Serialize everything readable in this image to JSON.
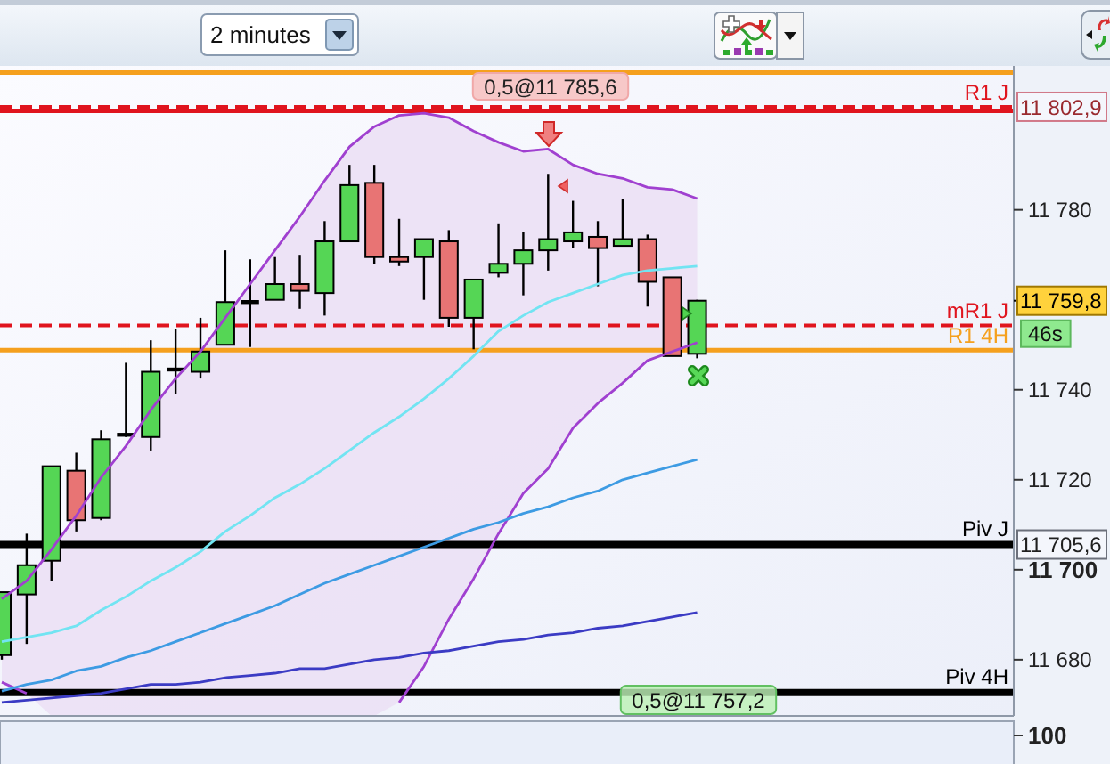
{
  "chart_data": [
    {
      "type": "candlestick",
      "tick_labels": "y",
      "categories": [
        null,
        null,
        null,
        null,
        null,
        null,
        null,
        null,
        null,
        null,
        null,
        null,
        null,
        null,
        null,
        null,
        null,
        null,
        null,
        null,
        null,
        null,
        null,
        null,
        null,
        null,
        null,
        null,
        null,
        null,
        null,
        null,
        null,
        null,
        null,
        null,
        null,
        null,
        null,
        null,
        null
      ],
      "ohlc": [
        [
          11681,
          11695,
          11680,
          11695
        ],
        [
          11694.5,
          11708,
          11683.5,
          11701
        ],
        [
          11702,
          11723,
          11697.5,
          11723
        ],
        [
          11722,
          11726,
          11708.5,
          11711
        ],
        [
          11711.5,
          11731,
          11711,
          11729
        ],
        [
          11730,
          11746,
          11729.5,
          11730
        ],
        [
          11729.5,
          11751,
          11726.5,
          11744
        ],
        [
          11744.5,
          11753.5,
          11739,
          11744.5
        ],
        [
          11744,
          11756,
          11742.5,
          11748.5
        ],
        [
          11750,
          11771,
          11750,
          11759.5
        ],
        [
          11759.5,
          11769,
          11749.5,
          11759.5
        ],
        [
          11760,
          11769.5,
          11760,
          11763.5
        ],
        [
          11763.5,
          11770,
          11758,
          11762
        ],
        [
          11761.5,
          11777.5,
          11756.5,
          11773
        ],
        [
          11773,
          11790,
          11773,
          11785.5
        ],
        [
          11786,
          11790,
          11768,
          11769.5
        ],
        [
          11769.5,
          11778,
          11767.5,
          11768.5
        ],
        [
          11769.5,
          11773.5,
          11760,
          11773.5
        ],
        [
          11773,
          11775.5,
          11754,
          11756
        ],
        [
          11756,
          11764.5,
          11749,
          11764.5
        ],
        [
          11766,
          11777,
          11765,
          11768
        ],
        [
          11768,
          11775,
          11761,
          11771
        ],
        [
          11771,
          11788,
          11766.5,
          11773.5
        ],
        [
          11773,
          11782,
          11771.5,
          11775
        ],
        [
          11774,
          11777.5,
          11763,
          11771.5
        ],
        [
          11772,
          11782.5,
          11772,
          11773.5
        ],
        [
          11773.5,
          11774.5,
          11758.5,
          11764
        ],
        [
          11765,
          11765,
          11747.5,
          11747.5
        ],
        [
          11748,
          11760,
          11747,
          11759.8
        ],
        null,
        null,
        null,
        null,
        null,
        null,
        null,
        null,
        null,
        null,
        null,
        null
      ],
      "colors": [
        "#55d655",
        "#55d655",
        "#55d655",
        "#e87474",
        "#55d655",
        "#000000",
        "#55d655",
        "#000000",
        "#55d655",
        "#55d655",
        "#000000",
        "#55d655",
        "#e87474",
        "#55d655",
        "#55d655",
        "#e87474",
        "#e87474",
        "#55d655",
        "#e87474",
        "#55d655",
        "#55d655",
        "#55d655",
        "#55d655",
        "#55d655",
        "#e87474",
        "#55d655",
        "#e87474",
        "#e87474",
        "#55d655",
        null,
        null,
        null,
        null,
        null,
        null,
        null,
        null,
        null,
        null,
        null,
        null
      ],
      "series": [
        {
          "type": "line",
          "color": "#a040d0",
          "values": [
            11693.5,
            11697.5,
            11704.5,
            11712,
            11720.5,
            11727.5,
            11735.5,
            11742.5,
            11748.5,
            11756,
            11763.5,
            11771,
            11778.5,
            11786.5,
            11794,
            11798.5,
            11801,
            11801.5,
            11800.5,
            11797.5,
            11795,
            11793,
            11793.5,
            11790,
            11788,
            11787,
            11785,
            11784.5,
            11782.5,
            null,
            null,
            null,
            null,
            null,
            null,
            null,
            null,
            null,
            null,
            null,
            null
          ]
        },
        {
          "type": "line",
          "color": "#a040d0",
          "values": [
            11675,
            11672.5,
            null,
            null,
            null,
            null,
            null,
            null,
            null,
            null,
            null,
            null,
            null,
            null,
            null,
            null,
            11670.5,
            11678.5,
            11689,
            11698,
            11708,
            11717,
            11722.5,
            11731.5,
            11737,
            11741.5,
            11746.5,
            11748.5,
            11750.5,
            null,
            null,
            null,
            null,
            null,
            null,
            null,
            null,
            null,
            null,
            null,
            null
          ]
        },
        {
          "type": "line",
          "color": "#72e4f2",
          "values": [
            11684,
            11685,
            11686,
            11687.5,
            11691,
            11694,
            11697.5,
            11700.5,
            11704,
            11708.5,
            11712,
            11716,
            11719,
            11722.5,
            11726.5,
            11730.5,
            11734,
            11738,
            11742.5,
            11747.5,
            11753,
            11756.5,
            11759.5,
            11761.5,
            11763.5,
            11765.5,
            11766.5,
            11767,
            11767.5,
            null,
            null,
            null,
            null,
            null,
            null,
            null,
            null,
            null,
            null,
            null,
            null
          ],
          "upper": [
            11693.5,
            11697.5,
            11704.5,
            11712,
            11720.5,
            11727.5,
            11735.5,
            11742.5,
            11748.5,
            11756,
            11763.5,
            11771,
            11778.5,
            11786.5,
            11794,
            11798.5,
            11801,
            11801.5,
            11800.5,
            11797.5,
            11795,
            11793,
            11793.5,
            11790,
            11788,
            11787,
            11785,
            11784.5,
            11782.5,
            null,
            null,
            null,
            null,
            null,
            null,
            null,
            null,
            null,
            null,
            null,
            null
          ],
          "lower": [
            11675,
            11672.5,
            11667.5,
            11667.5,
            11667.5,
            11667.5,
            11667.5,
            11667.5,
            11667.5,
            11667.5,
            11667.5,
            11667.5,
            11667.5,
            11667.5,
            11667.5,
            11667.5,
            11670.5,
            11678.5,
            11689,
            11698,
            11708,
            11717,
            11722.5,
            11731.5,
            11737,
            11741.5,
            11746.5,
            11748.5,
            11750.5,
            null,
            null,
            null,
            null,
            null,
            null,
            null,
            null,
            null,
            null,
            null,
            null
          ]
        },
        {
          "type": "line",
          "color": "#3d9be3",
          "values": [
            11673,
            11674.5,
            11675.5,
            11677.5,
            11678.5,
            11680.5,
            11682,
            11684,
            11686,
            11688,
            11690,
            11692,
            11694.5,
            11697,
            11699,
            11701,
            11703,
            11705,
            11707,
            11709,
            11710.5,
            11712.5,
            11714,
            11716,
            11717.5,
            11720,
            11721.5,
            11723,
            11724.5,
            null,
            null,
            null,
            null,
            null,
            null,
            null,
            null,
            null,
            null,
            null,
            null
          ]
        },
        {
          "type": "line",
          "color": "#3b3bc4",
          "values": [
            11670.5,
            11671,
            11671.5,
            11672,
            11672.5,
            11673.5,
            11674.5,
            11674.5,
            11675,
            11676,
            11676.5,
            11677,
            11678,
            11678,
            11679,
            11680,
            11680.5,
            11681.5,
            11682,
            11683,
            11684,
            11684.5,
            11685.5,
            11686,
            11687,
            11687.5,
            11688.5,
            11689.5,
            11690.5,
            null,
            null,
            null,
            null,
            null,
            null,
            null,
            null,
            null,
            null,
            null,
            null
          ]
        }
      ],
      "ylim": [
        11667.5,
        11812
      ],
      "yticks": [
        {
          "value": 11680,
          "label": "11 680"
        },
        {
          "value": 11700,
          "label": "11 700"
        },
        {
          "value": 11720,
          "label": "11 720"
        },
        {
          "value": 11740,
          "label": "11 740"
        },
        {
          "value": 11780,
          "label": "11 780"
        }
      ],
      "ref_lines": [
        {
          "axis": "y",
          "value": 11810.5,
          "color": "#f5a01e",
          "line_style": "solid"
        },
        {
          "axis": "y",
          "value": 11802.9,
          "label": "R1 J",
          "color": "#e0141e",
          "line_style": "dashed"
        },
        {
          "axis": "y",
          "value": 11802,
          "color": "#e0141e",
          "line_style": "solid"
        },
        {
          "axis": "y",
          "value": 11754.3,
          "label": "mR1 J",
          "color": "#e0141e",
          "line_style": "dashed"
        },
        {
          "axis": "y",
          "value": 11748.8,
          "label": "R1 4H",
          "color": "#f5a01e",
          "line_style": "solid"
        },
        {
          "axis": "y",
          "value": 11705.6,
          "label": "Piv J",
          "color": "#000000",
          "line_style": "solid"
        },
        {
          "axis": "y",
          "value": 11672.7,
          "label": "Piv 4H",
          "color": "#000000",
          "line_style": "solid"
        }
      ],
      "annotations": [
        "2 minutes",
        "0,5@11 785,6",
        "0,5@11 757,2",
        "46s",
        "11 802,9",
        "11 759,8",
        "11 705,6"
      ]
    },
    {
      "type": "other",
      "annotations": [
        "100"
      ]
    }
  ]
}
